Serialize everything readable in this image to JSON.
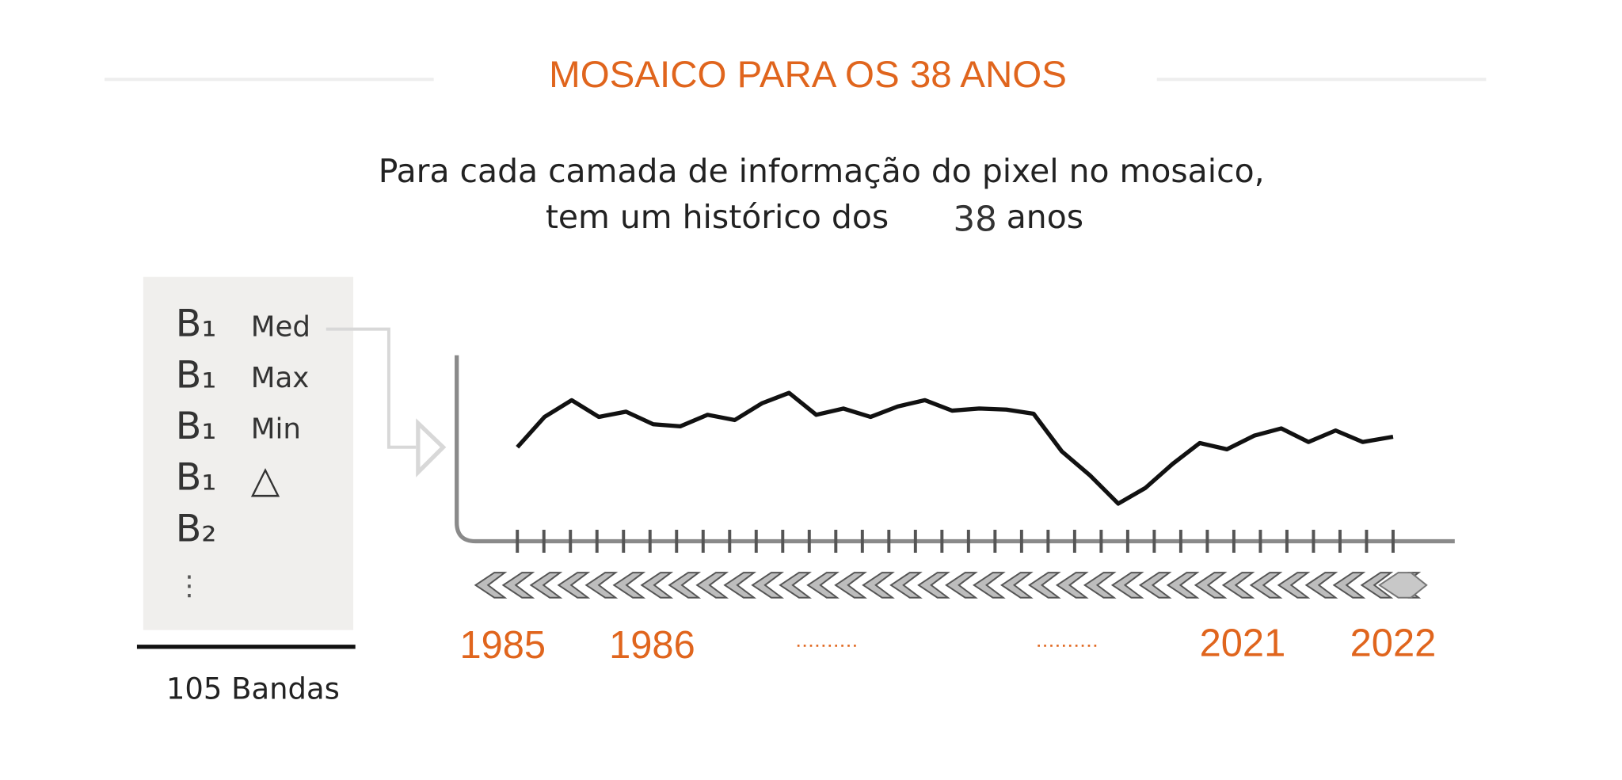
{
  "header": {
    "title": "MOSAICO PARA OS 38 ANOS",
    "subtitle_line1": "Para cada camada de informação do pixel no mosaico,",
    "subtitle_line2": [
      "tem um histórico dos",
      "38",
      "anos"
    ]
  },
  "bands": [
    [
      "B₁",
      "Med"
    ],
    [
      "B₁",
      "Max"
    ],
    [
      "B₁",
      "Min"
    ],
    [
      "B₁",
      "△"
    ],
    [
      "B₂"
    ]
  ],
  "bands_total": "105 Bandas",
  "years": [
    "1985",
    "1986",
    "2021",
    "2022"
  ]
}
